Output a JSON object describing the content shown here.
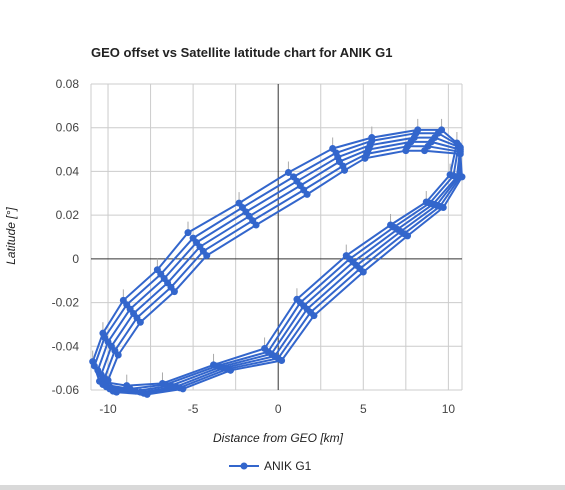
{
  "chart_data": {
    "type": "line",
    "title": "GEO offset vs Satellite latitude chart for ANIK G1",
    "xlabel": "Distance from GEO [km]",
    "ylabel": "Latitude [°]",
    "xlim": [
      -11,
      10.8
    ],
    "ylim": [
      -0.06,
      0.08
    ],
    "x_ticks": [
      "-10",
      "-5",
      "0",
      "5",
      "10"
    ],
    "y_ticks": [
      "0.08",
      "0.06",
      "0.04",
      "0.02",
      "0",
      "-0.02",
      "-0.04",
      "-0.06"
    ],
    "grid": true,
    "legend_position": "bottom",
    "series_color": "#3366cc",
    "series": [
      {
        "name": "ANIK G1",
        "loops": [
          [
            [
              9.6,
              0.059
            ],
            [
              8.2,
              0.059
            ],
            [
              5.5,
              0.0555
            ],
            [
              3.2,
              0.0505
            ],
            [
              0.6,
              0.0395
            ],
            [
              -2.3,
              0.0255
            ],
            [
              -5.3,
              0.012
            ],
            [
              -7.1,
              -0.005
            ],
            [
              -9.1,
              -0.019
            ],
            [
              -10.3,
              -0.034
            ],
            [
              -10.9,
              -0.047
            ],
            [
              -10.5,
              -0.056
            ],
            [
              -8.9,
              -0.058
            ],
            [
              -6.8,
              -0.057
            ],
            [
              -3.8,
              -0.0485
            ],
            [
              -0.8,
              -0.041
            ],
            [
              1.1,
              -0.0185
            ],
            [
              4.0,
              0.0015
            ],
            [
              6.6,
              0.0155
            ],
            [
              8.7,
              0.026
            ],
            [
              10.1,
              0.0385
            ],
            [
              10.5,
              0.053
            ],
            [
              9.6,
              0.059
            ]
          ],
          [
            [
              9.4,
              0.0575
            ],
            [
              8.1,
              0.0575
            ],
            [
              5.5,
              0.054
            ],
            [
              3.4,
              0.0485
            ],
            [
              0.9,
              0.0375
            ],
            [
              -2.1,
              0.0235
            ],
            [
              -5.0,
              0.0095
            ],
            [
              -6.9,
              -0.007
            ],
            [
              -8.9,
              -0.021
            ],
            [
              -10.2,
              -0.036
            ],
            [
              -10.8,
              -0.049
            ],
            [
              -10.3,
              -0.0575
            ],
            [
              -8.7,
              -0.0595
            ],
            [
              -6.6,
              -0.0575
            ],
            [
              -3.6,
              -0.049
            ],
            [
              -0.6,
              -0.0425
            ],
            [
              1.3,
              -0.02
            ],
            [
              4.2,
              0.0
            ],
            [
              6.8,
              0.0145
            ],
            [
              8.9,
              0.0255
            ],
            [
              10.3,
              0.038
            ],
            [
              10.6,
              0.052
            ],
            [
              9.4,
              0.0575
            ]
          ],
          [
            [
              9.2,
              0.0555
            ],
            [
              8.0,
              0.0555
            ],
            [
              5.4,
              0.052
            ],
            [
              3.5,
              0.0465
            ],
            [
              1.1,
              0.0355
            ],
            [
              -1.9,
              0.0215
            ],
            [
              -4.8,
              0.0075
            ],
            [
              -6.7,
              -0.009
            ],
            [
              -8.7,
              -0.023
            ],
            [
              -10.0,
              -0.038
            ],
            [
              -10.6,
              -0.051
            ],
            [
              -10.1,
              -0.0585
            ],
            [
              -8.4,
              -0.0605
            ],
            [
              -6.3,
              -0.058
            ],
            [
              -3.4,
              -0.0495
            ],
            [
              -0.4,
              -0.0435
            ],
            [
              1.5,
              -0.0215
            ],
            [
              4.4,
              -0.0015
            ],
            [
              7.0,
              0.0135
            ],
            [
              9.1,
              0.025
            ],
            [
              10.5,
              0.0375
            ],
            [
              10.7,
              0.051
            ],
            [
              9.2,
              0.0555
            ]
          ],
          [
            [
              9.0,
              0.0535
            ],
            [
              7.8,
              0.0535
            ],
            [
              5.3,
              0.05
            ],
            [
              3.6,
              0.0445
            ],
            [
              1.3,
              0.0335
            ],
            [
              -1.7,
              0.0195
            ],
            [
              -4.6,
              0.0055
            ],
            [
              -6.5,
              -0.011
            ],
            [
              -8.5,
              -0.025
            ],
            [
              -9.8,
              -0.04
            ],
            [
              -10.4,
              -0.053
            ],
            [
              -9.9,
              -0.0595
            ],
            [
              -8.1,
              -0.061
            ],
            [
              -6.0,
              -0.0585
            ],
            [
              -3.2,
              -0.05
            ],
            [
              -0.2,
              -0.0445
            ],
            [
              1.7,
              -0.023
            ],
            [
              4.6,
              -0.003
            ],
            [
              7.2,
              0.0125
            ],
            [
              9.3,
              0.0245
            ],
            [
              10.6,
              0.0375
            ],
            [
              10.7,
              0.05
            ],
            [
              9.0,
              0.0535
            ]
          ],
          [
            [
              8.8,
              0.0515
            ],
            [
              7.6,
              0.0515
            ],
            [
              5.2,
              0.048
            ],
            [
              3.8,
              0.0425
            ],
            [
              1.5,
              0.0315
            ],
            [
              -1.5,
              0.0175
            ],
            [
              -4.4,
              0.0035
            ],
            [
              -6.3,
              -0.013
            ],
            [
              -8.3,
              -0.027
            ],
            [
              -9.6,
              -0.042
            ],
            [
              -10.2,
              -0.0545
            ],
            [
              -9.7,
              -0.0605
            ],
            [
              -7.9,
              -0.0615
            ],
            [
              -5.8,
              -0.059
            ],
            [
              -3.0,
              -0.0505
            ],
            [
              0.0,
              -0.0455
            ],
            [
              1.9,
              -0.0245
            ],
            [
              4.8,
              -0.0045
            ],
            [
              7.4,
              0.0115
            ],
            [
              9.5,
              0.024
            ],
            [
              10.7,
              0.0375
            ],
            [
              10.7,
              0.049
            ],
            [
              8.8,
              0.0515
            ]
          ],
          [
            [
              8.6,
              0.0495
            ],
            [
              7.5,
              0.0495
            ],
            [
              5.1,
              0.046
            ],
            [
              3.9,
              0.0405
            ],
            [
              1.7,
              0.0295
            ],
            [
              -1.3,
              0.0155
            ],
            [
              -4.2,
              0.0015
            ],
            [
              -6.1,
              -0.015
            ],
            [
              -8.1,
              -0.029
            ],
            [
              -9.4,
              -0.044
            ],
            [
              -10.0,
              -0.0555
            ],
            [
              -9.5,
              -0.061
            ],
            [
              -7.7,
              -0.062
            ],
            [
              -5.6,
              -0.0595
            ],
            [
              -2.8,
              -0.051
            ],
            [
              0.2,
              -0.0465
            ],
            [
              2.1,
              -0.026
            ],
            [
              5.0,
              -0.006
            ],
            [
              7.6,
              0.0105
            ],
            [
              9.7,
              0.0235
            ],
            [
              10.8,
              0.0375
            ],
            [
              10.7,
              0.048
            ],
            [
              8.6,
              0.0495
            ]
          ]
        ]
      }
    ]
  }
}
